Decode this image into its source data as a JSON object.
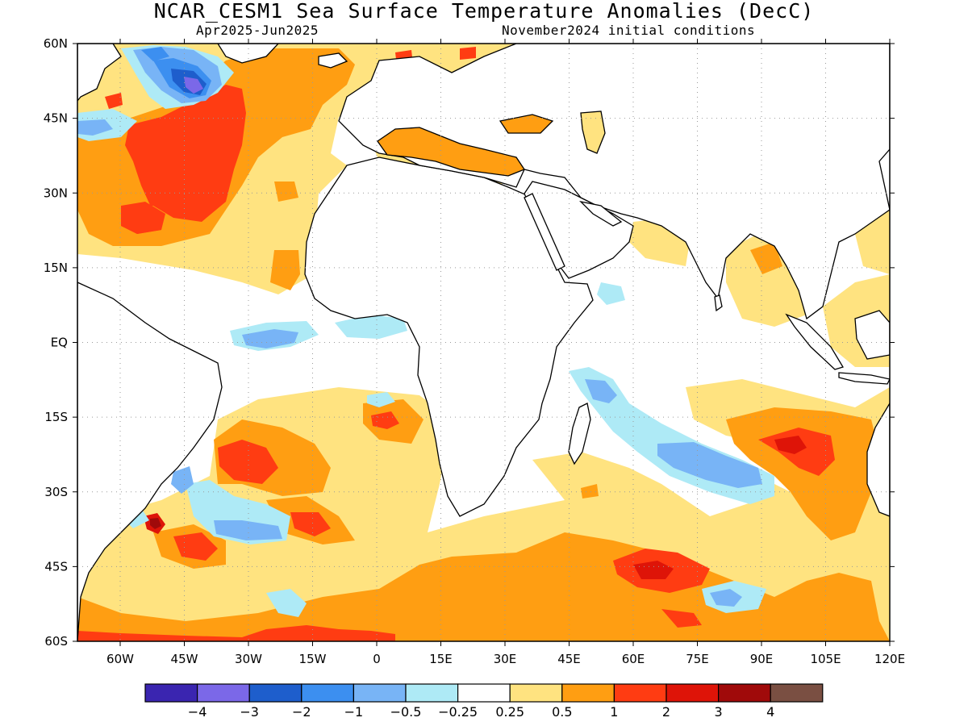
{
  "header": {
    "title": "NCAR_CESM1 Sea Surface Temperature Anomalies (DecC)",
    "period": "Apr2025-Jun2025",
    "init": "November2024 initial conditions"
  },
  "axes": {
    "lon_range": [
      -70,
      120
    ],
    "lat_range": [
      -60,
      60
    ],
    "grid": "dotted",
    "lat_ticks": [
      {
        "v": 60,
        "label": "60N"
      },
      {
        "v": 45,
        "label": "45N"
      },
      {
        "v": 30,
        "label": "30N"
      },
      {
        "v": 15,
        "label": "15N"
      },
      {
        "v": 0,
        "label": "EQ"
      },
      {
        "v": -15,
        "label": "15S"
      },
      {
        "v": -30,
        "label": "30S"
      },
      {
        "v": -45,
        "label": "45S"
      },
      {
        "v": -60,
        "label": "60S"
      }
    ],
    "lon_ticks": [
      {
        "v": -60,
        "label": "60W"
      },
      {
        "v": -45,
        "label": "45W"
      },
      {
        "v": -30,
        "label": "30W"
      },
      {
        "v": -15,
        "label": "15W"
      },
      {
        "v": 0,
        "label": "0"
      },
      {
        "v": 15,
        "label": "15E"
      },
      {
        "v": 30,
        "label": "30E"
      },
      {
        "v": 45,
        "label": "45E"
      },
      {
        "v": 60,
        "label": "60E"
      },
      {
        "v": 75,
        "label": "75E"
      },
      {
        "v": 90,
        "label": "90E"
      },
      {
        "v": 105,
        "label": "105E"
      },
      {
        "v": 120,
        "label": "120E"
      }
    ]
  },
  "colorbar": {
    "colors": [
      "#3a25b0",
      "#7b68e8",
      "#1e5ecc",
      "#3c8ff0",
      "#78b4f6",
      "#aeeaf6",
      "#ffffff",
      "#ffe380",
      "#ff9e12",
      "#ff3c12",
      "#de1408",
      "#a00a0a",
      "#7a4f42"
    ],
    "labels": [
      "−4",
      "−3",
      "−2",
      "−1",
      "−0.5",
      "−0.25",
      "0.25",
      "0.5",
      "1",
      "2",
      "3",
      "4"
    ]
  },
  "anomaly_regions": [
    {
      "name": "north-atlantic-warm-pool",
      "level": "0.5",
      "color": "#ff9e12",
      "lon": -55,
      "lat": 35
    },
    {
      "name": "north-atlantic-strong-warm",
      "level": "1",
      "color": "#ff3c12",
      "lon": -40,
      "lat": 38
    },
    {
      "name": "labrador-sea-cool",
      "level": "-2",
      "color": "#1e5ecc",
      "lon": -43,
      "lat": 51
    },
    {
      "name": "equatorial-atlantic-cool",
      "level": "-1",
      "color": "#78b4f6",
      "lon": -20,
      "lat": 0
    },
    {
      "name": "south-atlantic-warm",
      "level": "1",
      "color": "#ff3c12",
      "lon": -25,
      "lat": -26
    },
    {
      "name": "brazil-malvinas-hotspot",
      "level": "3",
      "color": "#a00a0a",
      "lon": -54,
      "lat": -38
    },
    {
      "name": "south-indian-cool-band",
      "level": "-1",
      "color": "#78b4f6",
      "lon": 75,
      "lat": -25
    },
    {
      "name": "southeast-indian-warm",
      "level": "1",
      "color": "#ff3c12",
      "lon": 103,
      "lat": -22
    },
    {
      "name": "southern-ocean-warm",
      "level": "0.5",
      "color": "#ff9e12",
      "lon": 30,
      "lat": -50
    },
    {
      "name": "southern-ocean-strong-warm",
      "level": "2",
      "color": "#de1408",
      "lon": 68,
      "lat": -47
    },
    {
      "name": "southern-ocean-cool",
      "level": "-1",
      "color": "#78b4f6",
      "lon": 85,
      "lat": -50
    },
    {
      "name": "mediterranean-warm",
      "level": "0.5",
      "color": "#ff9e12",
      "lon": 20,
      "lat": 38
    },
    {
      "name": "bay-of-bengal-warm",
      "level": "0.25",
      "color": "#ffe380",
      "lon": 88,
      "lat": 14
    }
  ]
}
